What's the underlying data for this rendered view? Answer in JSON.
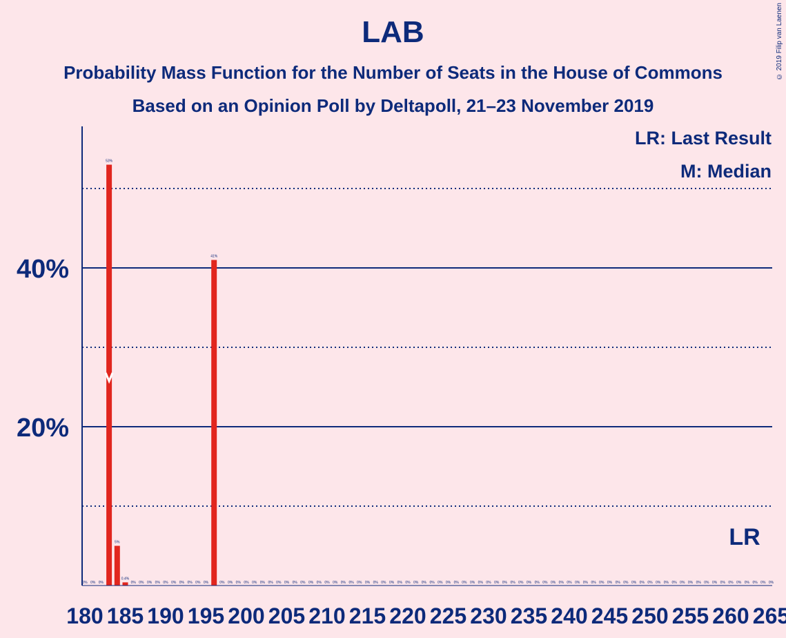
{
  "header": {
    "title": "LAB",
    "subtitle1": "Probability Mass Function for the Number of Seats in the House of Commons",
    "subtitle2": "Based on an Opinion Poll by Deltapoll, 21–23 November 2019",
    "copyright": "© 2019 Filip van Laenen"
  },
  "legend": {
    "lr": "LR: Last Result",
    "median": "M: Median"
  },
  "markers": {
    "last_result_label": "LR",
    "last_result_seat": 262,
    "median_seat": 183
  },
  "colors": {
    "background": "#fde6ea",
    "bar": "#e1261e",
    "text": "#0d2a7a"
  },
  "chart_data": {
    "type": "bar",
    "x_start": 180,
    "x_end": 265,
    "xlim": [
      180,
      265
    ],
    "ylim": [
      0,
      57.5
    ],
    "x_ticks": [
      180,
      185,
      190,
      195,
      200,
      205,
      210,
      215,
      220,
      225,
      230,
      235,
      240,
      245,
      250,
      255,
      260,
      265
    ],
    "y_ticks_major": [
      {
        "value": 20,
        "label": "20%"
      },
      {
        "value": 40,
        "label": "40%"
      }
    ],
    "y_ticks_minor": [
      10,
      30,
      50
    ],
    "values": {
      "183": 53,
      "184": 5,
      "185": 0.4,
      "196": 41
    },
    "value_labels": {
      "183": "53%",
      "184": "5%",
      "185": "0.4%",
      "196": "41%"
    },
    "zero_label": "0%"
  }
}
